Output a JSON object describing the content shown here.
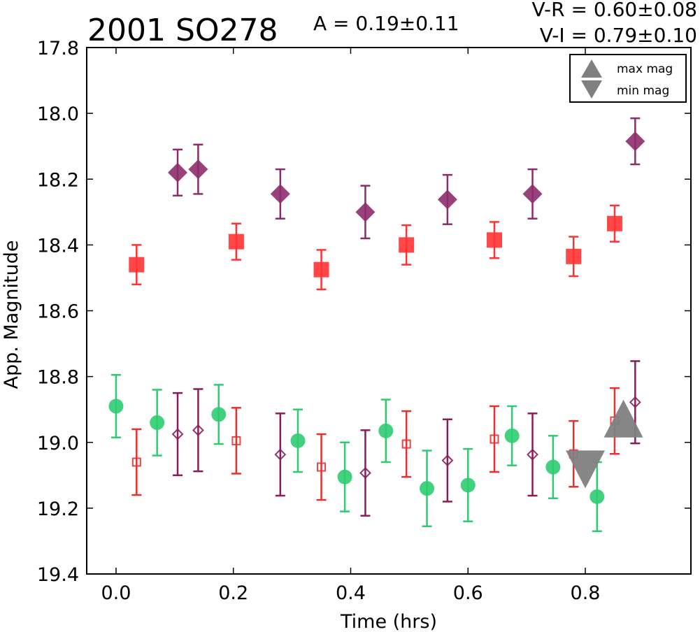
{
  "chart_data": {
    "type": "scatter",
    "title": "2001 SO278",
    "annotations": {
      "amplitude": "A  = 0.19±0.11",
      "vr": "V-R = 0.60±0.08",
      "vi": "V-I  = 0.79±0.10"
    },
    "xlabel": "Time (hrs)",
    "ylabel": "App. Magnitude",
    "xlim": [
      -0.05,
      0.98
    ],
    "ylim": [
      17.8,
      19.4
    ],
    "y_inverted": true,
    "grid": false,
    "x_ticks": [
      "0.0",
      "0.2",
      "0.4",
      "0.6",
      "0.8"
    ],
    "y_ticks": [
      "17.8",
      "18.0",
      "18.2",
      "18.4",
      "18.6",
      "18.8",
      "19.0",
      "19.2",
      "19.4"
    ],
    "legend": {
      "placement": "top-right",
      "entries": [
        {
          "label": "max mag",
          "marker": "triangle-up",
          "color": "#808080"
        },
        {
          "label": "min mag",
          "marker": "triangle-down",
          "color": "#808080"
        }
      ]
    },
    "series": [
      {
        "marker": "circle",
        "color": "#2ecc71",
        "filled": true,
        "points": [
          {
            "x": 0.0,
            "y": 18.89,
            "err": 0.095
          },
          {
            "x": 0.07,
            "y": 18.94,
            "err": 0.1
          },
          {
            "x": 0.175,
            "y": 18.915,
            "err": 0.09
          },
          {
            "x": 0.31,
            "y": 18.995,
            "err": 0.095
          },
          {
            "x": 0.39,
            "y": 19.105,
            "err": 0.105
          },
          {
            "x": 0.46,
            "y": 18.965,
            "err": 0.095
          },
          {
            "x": 0.53,
            "y": 19.14,
            "err": 0.115
          },
          {
            "x": 0.6,
            "y": 19.13,
            "err": 0.11
          },
          {
            "x": 0.675,
            "y": 18.98,
            "err": 0.09
          },
          {
            "x": 0.745,
            "y": 19.075,
            "err": 0.095
          },
          {
            "x": 0.82,
            "y": 19.165,
            "err": 0.105
          }
        ]
      },
      {
        "marker": "square",
        "color": "#ff3333",
        "filled": true,
        "points": [
          {
            "x": 0.035,
            "y": 18.46,
            "err": 0.06
          },
          {
            "x": 0.205,
            "y": 18.39,
            "err": 0.055
          },
          {
            "x": 0.35,
            "y": 18.475,
            "err": 0.06
          },
          {
            "x": 0.495,
            "y": 18.4,
            "err": 0.06
          },
          {
            "x": 0.645,
            "y": 18.385,
            "err": 0.055
          },
          {
            "x": 0.78,
            "y": 18.435,
            "err": 0.06
          },
          {
            "x": 0.85,
            "y": 18.335,
            "err": 0.055
          }
        ]
      },
      {
        "marker": "square",
        "color": "#e8302f",
        "filled": false,
        "points": [
          {
            "x": 0.035,
            "y": 19.06,
            "err": 0.1
          },
          {
            "x": 0.205,
            "y": 18.995,
            "err": 0.1
          },
          {
            "x": 0.35,
            "y": 19.075,
            "err": 0.1
          },
          {
            "x": 0.495,
            "y": 19.005,
            "err": 0.1
          },
          {
            "x": 0.645,
            "y": 18.99,
            "err": 0.1
          },
          {
            "x": 0.78,
            "y": 19.035,
            "err": 0.1
          },
          {
            "x": 0.85,
            "y": 18.935,
            "err": 0.1
          }
        ]
      },
      {
        "marker": "diamond",
        "color": "#8e2c6b",
        "filled": true,
        "points": [
          {
            "x": 0.105,
            "y": 18.18,
            "err": 0.07
          },
          {
            "x": 0.14,
            "y": 18.17,
            "err": 0.075
          },
          {
            "x": 0.28,
            "y": 18.245,
            "err": 0.075
          },
          {
            "x": 0.425,
            "y": 18.3,
            "err": 0.08
          },
          {
            "x": 0.565,
            "y": 18.262,
            "err": 0.075
          },
          {
            "x": 0.71,
            "y": 18.245,
            "err": 0.075
          },
          {
            "x": 0.885,
            "y": 18.085,
            "err": 0.07
          }
        ]
      },
      {
        "marker": "diamond",
        "color": "#8b1c5a",
        "filled": false,
        "points": [
          {
            "x": 0.105,
            "y": 18.975,
            "err": 0.125
          },
          {
            "x": 0.14,
            "y": 18.963,
            "err": 0.125
          },
          {
            "x": 0.28,
            "y": 19.037,
            "err": 0.125
          },
          {
            "x": 0.425,
            "y": 19.093,
            "err": 0.13
          },
          {
            "x": 0.565,
            "y": 19.055,
            "err": 0.125
          },
          {
            "x": 0.71,
            "y": 19.037,
            "err": 0.125
          },
          {
            "x": 0.885,
            "y": 18.878,
            "err": 0.125
          }
        ]
      },
      {
        "name": "max mag",
        "marker": "triangle-up",
        "color": "#808080",
        "filled": true,
        "points": [
          {
            "x": 0.865,
            "y": 18.93
          }
        ]
      },
      {
        "name": "min mag",
        "marker": "triangle-down",
        "color": "#808080",
        "filled": true,
        "points": [
          {
            "x": 0.8,
            "y": 19.08
          }
        ]
      }
    ]
  }
}
